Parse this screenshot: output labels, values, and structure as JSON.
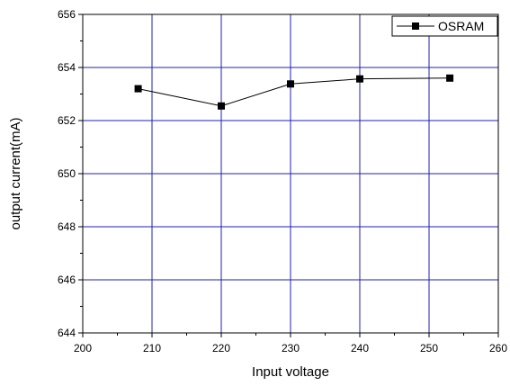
{
  "chart_data": {
    "type": "line",
    "xlabel": "Input voltage",
    "ylabel": "output current(mA)",
    "xlim": [
      200,
      260
    ],
    "ylim": [
      644,
      656
    ],
    "xticks": [
      200,
      210,
      220,
      230,
      240,
      250,
      260
    ],
    "yticks": [
      644,
      646,
      648,
      650,
      652,
      654,
      656
    ],
    "grid": true,
    "legend_position": "top-right",
    "colors": {
      "grid": "#1f1fb4",
      "series": "#000000",
      "axis": "#000000"
    },
    "series": [
      {
        "name": "OSRAM",
        "marker": "square",
        "x": [
          208,
          220,
          230,
          240,
          253
        ],
        "y": [
          653.2,
          652.55,
          653.38,
          653.57,
          653.6
        ]
      }
    ]
  }
}
